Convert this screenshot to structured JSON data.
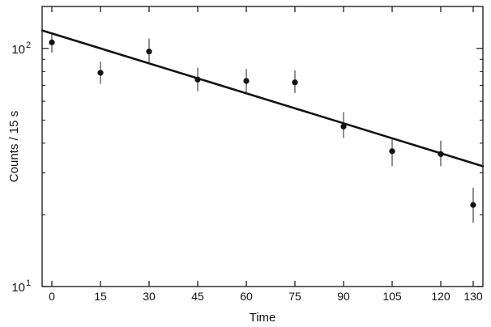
{
  "chart_data": {
    "type": "scatter",
    "title": "",
    "xlabel": "Time",
    "ylabel": "Counts / 15 s",
    "y_scale": "log",
    "xlim": [
      -3,
      133
    ],
    "ylim": [
      10,
      150
    ],
    "grid": false,
    "x_ticks": [
      0,
      15,
      30,
      45,
      60,
      75,
      90,
      105,
      120,
      130
    ],
    "x_tick_labels": [
      "0",
      "15",
      "30",
      "45",
      "60",
      "75",
      "90",
      "105",
      "120",
      "130"
    ],
    "y_ticks": [
      {
        "value": 10,
        "base": "10",
        "exp": "1"
      },
      {
        "value": 100,
        "base": "10",
        "exp": "2"
      }
    ],
    "points": [
      {
        "x": 0,
        "y": 106,
        "y_low": 96,
        "y_high": 116
      },
      {
        "x": 15,
        "y": 79,
        "y_low": 71,
        "y_high": 88
      },
      {
        "x": 30,
        "y": 97,
        "y_low": 86,
        "y_high": 110
      },
      {
        "x": 45,
        "y": 74,
        "y_low": 66,
        "y_high": 83
      },
      {
        "x": 60,
        "y": 73,
        "y_low": 65,
        "y_high": 82
      },
      {
        "x": 75,
        "y": 72,
        "y_low": 65,
        "y_high": 81
      },
      {
        "x": 90,
        "y": 47,
        "y_low": 42,
        "y_high": 54
      },
      {
        "x": 105,
        "y": 37,
        "y_low": 32,
        "y_high": 42
      },
      {
        "x": 120,
        "y": 36,
        "y_low": 32,
        "y_high": 41
      },
      {
        "x": 130,
        "y": 22,
        "y_low": 18.5,
        "y_high": 26
      }
    ],
    "fit_line": {
      "x": [
        -3,
        133
      ],
      "y": [
        119,
        32
      ]
    }
  }
}
